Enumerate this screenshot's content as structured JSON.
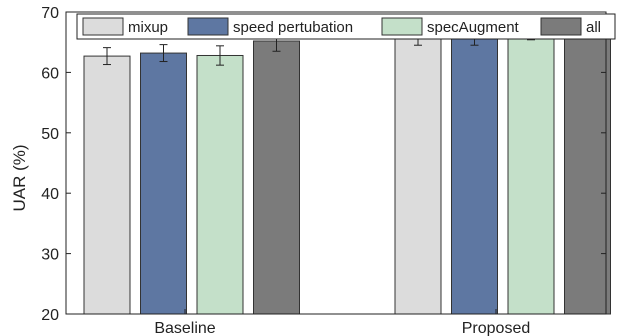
{
  "chart_data": {
    "type": "bar",
    "title": "",
    "xlabel": "",
    "ylabel": "UAR (%)",
    "ylim": [
      20,
      70
    ],
    "yticks": [
      20,
      30,
      40,
      50,
      60,
      70
    ],
    "grid": false,
    "legend_position": "top",
    "categories": [
      "Baseline",
      "Proposed"
    ],
    "series": [
      {
        "name": "mixup",
        "color": "#dcdcdc",
        "values": [
          62.7,
          65.9
        ],
        "errors": [
          1.4,
          1.4
        ]
      },
      {
        "name": "speed pertubation",
        "color": "#5e77a2",
        "values": [
          63.2,
          66.1
        ],
        "errors": [
          1.4,
          1.6
        ]
      },
      {
        "name": "specAugment",
        "color": "#c4e0c9",
        "values": [
          62.8,
          66.9
        ],
        "errors": [
          1.6,
          1.5
        ]
      },
      {
        "name": "all",
        "color": "#7b7b7b",
        "values": [
          65.2,
          68.2
        ],
        "errors": [
          1.7,
          1.2
        ]
      }
    ]
  }
}
